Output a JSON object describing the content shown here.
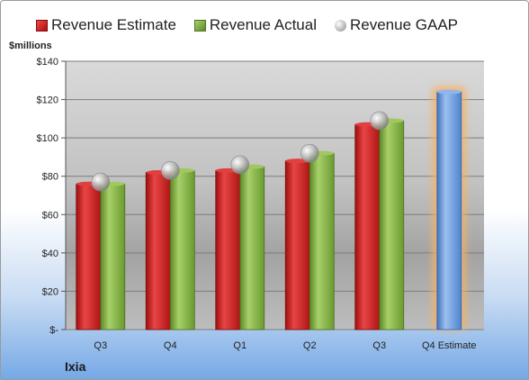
{
  "legend": {
    "estimate": "Revenue Estimate",
    "actual": "Revenue Actual",
    "gaap": "Revenue GAAP"
  },
  "unit_label": "$millions",
  "company": "Ixia",
  "colors": {
    "estimate": "#c91e1e",
    "actual": "#7aa93c",
    "gaap": "#a8a8a8",
    "forecast": "#5b8ed4",
    "forecast_glow": "#f4b266"
  },
  "chart_data": {
    "type": "bar",
    "categories": [
      "Q3",
      "Q4",
      "Q1",
      "Q2",
      "Q3",
      "Q4 Estimate"
    ],
    "series": [
      {
        "name": "Revenue Estimate",
        "values": [
          76,
          82,
          83,
          88,
          107,
          124
        ]
      },
      {
        "name": "Revenue Actual",
        "values": [
          76,
          83,
          85,
          92,
          109,
          null
        ]
      },
      {
        "name": "Revenue GAAP",
        "values": [
          77,
          83,
          86,
          92,
          109,
          null
        ]
      }
    ],
    "ylabel": "$millions",
    "ylim": [
      0,
      140
    ],
    "yticks": [
      0,
      20,
      40,
      60,
      80,
      100,
      120,
      140
    ],
    "ytick_labels": [
      "$-",
      "$20",
      "$40",
      "$60",
      "$80",
      "$100",
      "$120",
      "$140"
    ],
    "grid": true,
    "legend_position": "top"
  }
}
